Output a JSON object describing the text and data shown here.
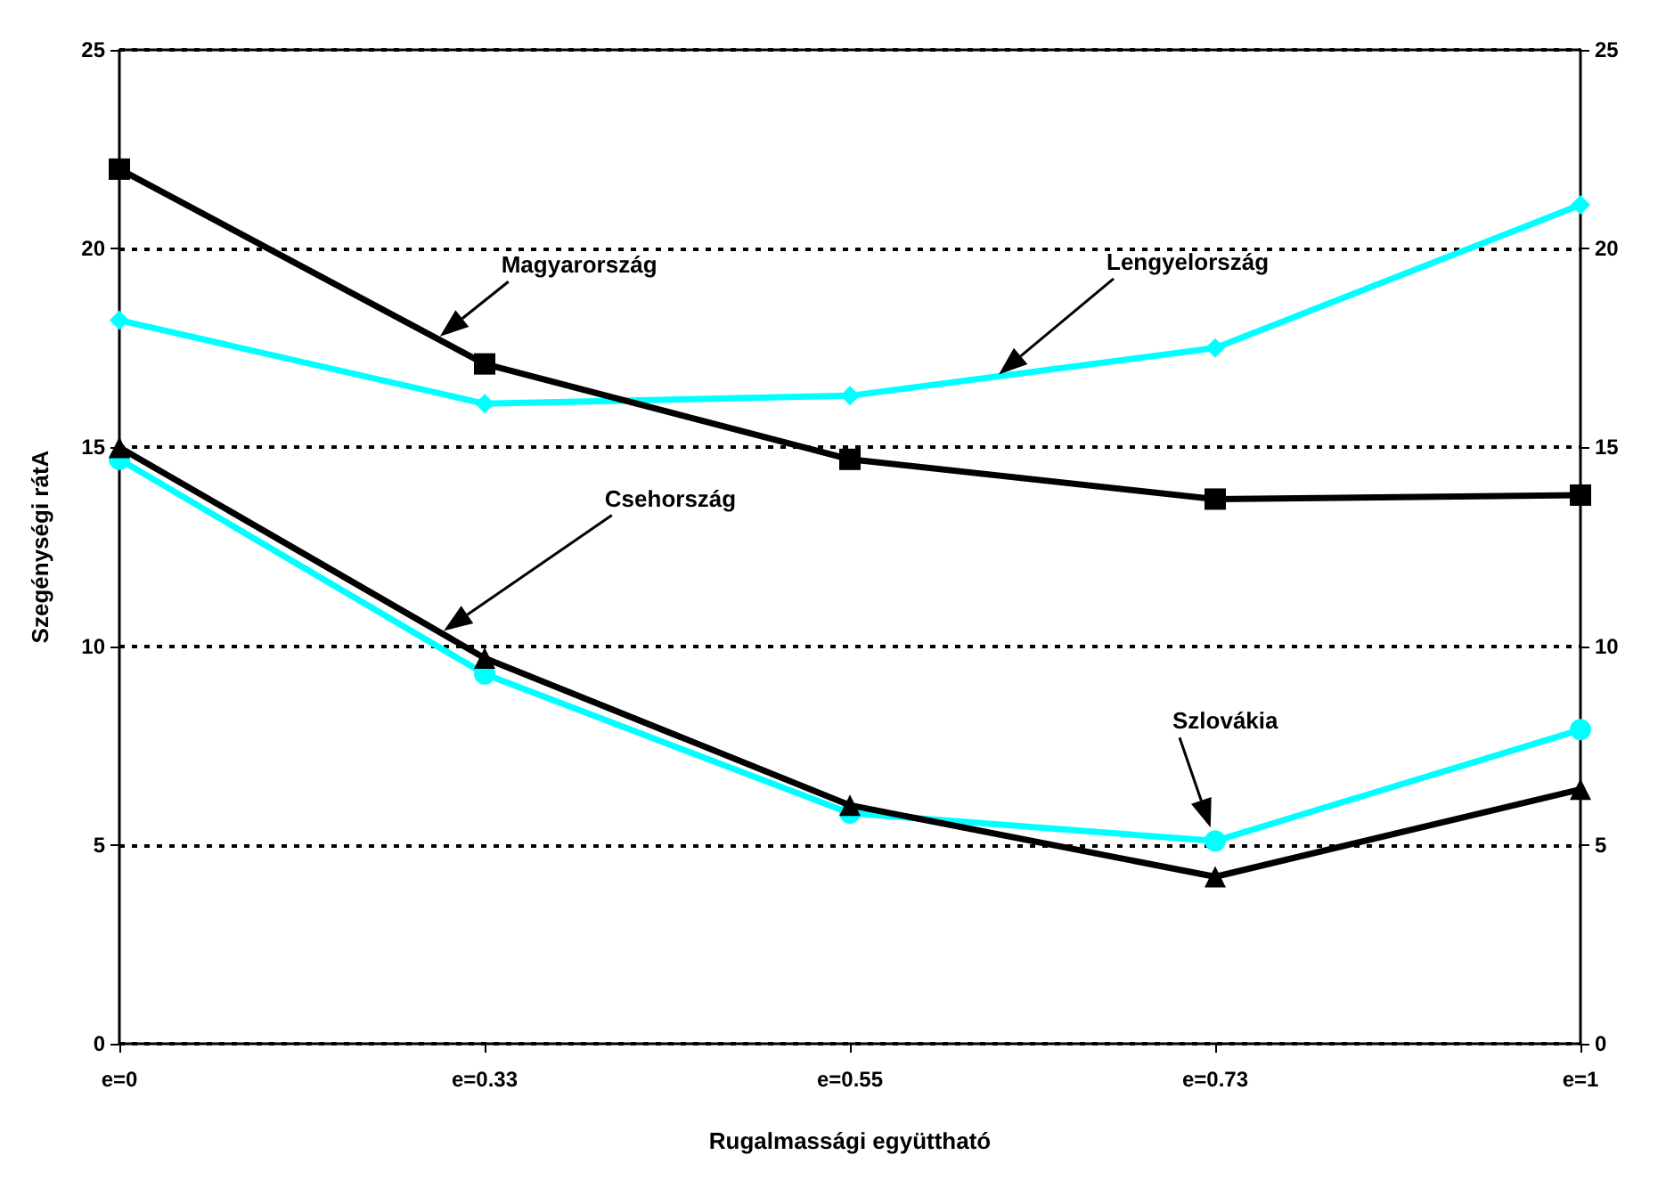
{
  "chart_data": {
    "type": "line",
    "xlabel": "Rugalmassági együttható",
    "ylabel": "Szegénységi rátA",
    "categories": [
      "e=0",
      "e=0.33",
      "e=0.55",
      "e=0.73",
      "e=1"
    ],
    "series": [
      {
        "color": "#000000",
        "marker": "square",
        "values": [
          22.0,
          17.1,
          14.7,
          13.7,
          13.8
        ]
      },
      {
        "color": "#00ffff",
        "marker": "diamond",
        "values": [
          18.2,
          16.1,
          16.3,
          17.5,
          21.1
        ]
      },
      {
        "color": "#000000",
        "marker": "triangle",
        "values": [
          15.0,
          9.7,
          6.0,
          4.2,
          6.4
        ]
      },
      {
        "color": "#00ffff",
        "marker": "circle",
        "values": [
          14.7,
          9.3,
          5.8,
          5.1,
          7.9
        ]
      }
    ],
    "annotations": [
      "Magyarország",
      "Lengyelország",
      "Csehország",
      "Szlovákia"
    ],
    "ylim": [
      0,
      25
    ],
    "yticks": [
      0,
      5,
      10,
      15,
      20,
      25
    ],
    "y2lim": [
      0,
      25
    ],
    "y2ticks": [
      0,
      5,
      10,
      15,
      20,
      25
    ],
    "grid": "y"
  }
}
